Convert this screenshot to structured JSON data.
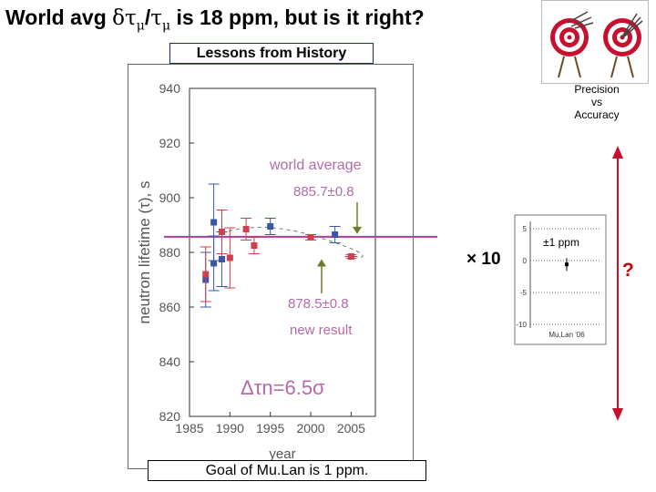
{
  "title": {
    "prefix": "World avg ",
    "delta": "δ",
    "tau1": "τ",
    "mu1": "μ",
    "slash": "/",
    "tau2": "τ",
    "mu2": "μ",
    "suffix": " is 18 ppm, but is it right?"
  },
  "lessons_label": "Lessons from History",
  "goal_label": "Goal of Mu.Lan is 1 ppm.",
  "precision_label": [
    "Precision",
    "vs",
    "Accuracy"
  ],
  "times10_label": "× 10",
  "question_label": "?",
  "colors": {
    "blue_points": "#3a56a8",
    "red_points": "#d0404a",
    "avg_line": "#b63a9a",
    "annotation": "#b46aa8",
    "arrow": "#6e7a2a",
    "big_arrow": "#c8102e"
  },
  "chart_data": [
    {
      "type": "scatter",
      "xlabel": "year",
      "ylabel": "neutron lifetime (τ), s",
      "xlim": [
        1985,
        2008
      ],
      "ylim": [
        820,
        940
      ],
      "xticks": [
        1985,
        1990,
        1995,
        2000,
        2005
      ],
      "yticks": [
        820,
        840,
        860,
        880,
        900,
        920,
        940
      ],
      "series": [
        {
          "color": "blue",
          "points": [
            {
              "x": 1987,
              "y": 870,
              "err": 10
            },
            {
              "x": 1988,
              "y": 891,
              "err": 14
            },
            {
              "x": 1988,
              "y": 876,
              "err": 10
            },
            {
              "x": 1989,
              "y": 877.5,
              "err": 10
            },
            {
              "x": 1995,
              "y": 889.5,
              "err": 3
            },
            {
              "x": 2003,
              "y": 886.5,
              "err": 3
            }
          ]
        },
        {
          "color": "red",
          "points": [
            {
              "x": 1987,
              "y": 872,
              "err": 10
            },
            {
              "x": 1989,
              "y": 887.5,
              "err": 8
            },
            {
              "x": 1990,
              "y": 878,
              "err": 11
            },
            {
              "x": 1992,
              "y": 888.5,
              "err": 4
            },
            {
              "x": 1993,
              "y": 882.5,
              "err": 3
            },
            {
              "x": 2000,
              "y": 885.5,
              "err": 1
            },
            {
              "x": 2005,
              "y": 878.5,
              "err": 0.7
            }
          ]
        }
      ],
      "world_average_value": 885.7,
      "annotations": {
        "world_average": "world average",
        "world_average_value": "885.7±0.8",
        "new_result_value": "878.5±0.8",
        "new_result": "new result",
        "delta_tau": "Δτn=6.5σ"
      }
    },
    {
      "type": "scatter",
      "ylim": [
        -10,
        5
      ],
      "yticks": [
        5,
        0,
        -5,
        -10
      ],
      "annotation": "±1 ppm",
      "xlabel": "Mu.Lan '06",
      "points": [
        {
          "y": -0.6,
          "err": 1
        }
      ]
    }
  ]
}
